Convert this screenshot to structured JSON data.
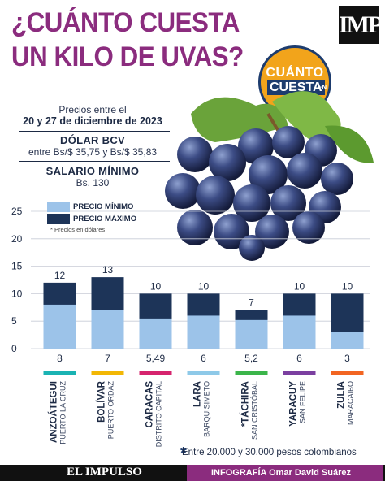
{
  "header": {
    "title_line1": "¿CUÁNTO CUESTA",
    "title_line2": "UN KILO DE UVAS?",
    "logo": "IMP",
    "badge_line1": "CUÁNTO",
    "badge_line2": "CUESTA",
    "badge_line3": "EN",
    "colors": {
      "title": "#8b2c7e",
      "badge": "#f2a41b",
      "navy": "#1d3c6e"
    }
  },
  "info": {
    "prices_label": "Precios entre el",
    "prices_dates": "20 y 27 de diciembre de 2023",
    "dolar_title": "DÓLAR BCV",
    "dolar_value": "entre Bs/$ 35,75 y Bs/$ 35,83",
    "salario_title": "SALARIO MÍNIMO",
    "salario_value": "Bs. 130"
  },
  "legend": {
    "min_label": "PRECIO MÍNIMO",
    "max_label": "PRECIO MÁXIMO",
    "note": "* Precios en dólares"
  },
  "chart_data": {
    "type": "bar",
    "ylim": [
      0,
      25
    ],
    "yticks": [
      "0",
      "5",
      "10",
      "15",
      "20",
      "25"
    ],
    "categories": [
      {
        "state": "ANZOÁTEGUI",
        "city": "PUERTO LA CRUZ",
        "color": "#1ab3b3",
        "star": false
      },
      {
        "state": "BOLÍVAR",
        "city": "PUERTO ORDAZ",
        "color": "#f2b705",
        "star": false
      },
      {
        "state": "CARACAS",
        "city": "DISTRITO CAPITAL",
        "color": "#d6246e",
        "star": false
      },
      {
        "state": "LARA",
        "city": "BARQUISIMETO",
        "color": "#8ec9e8",
        "star": false
      },
      {
        "state": "TÁCHIRA",
        "city": "SAN CRISTÓBAL",
        "color": "#3bb54a",
        "star": true
      },
      {
        "state": "YARACUY",
        "city": "SAN FELIPE",
        "color": "#7b3fa0",
        "star": false
      },
      {
        "state": "ZULIA",
        "city": "MARACAIBO",
        "color": "#f26522",
        "star": false
      }
    ],
    "series": [
      {
        "name": "PRECIO MÍNIMO",
        "color": "#9cc3e9",
        "values": [
          8,
          7,
          5.49,
          6,
          5.2,
          6,
          3
        ]
      },
      {
        "name": "PRECIO MÁXIMO",
        "color": "#1d3458",
        "values": [
          12,
          13,
          10,
          10,
          7,
          10,
          10
        ]
      }
    ],
    "min_labels": [
      "8",
      "7",
      "5,49",
      "6",
      "5,2",
      "6",
      "3"
    ],
    "max_labels": [
      "12",
      "13",
      "10",
      "10",
      "7",
      "10",
      "10"
    ],
    "grid": true,
    "legend_position": "top-left"
  },
  "footnote": {
    "star": "*",
    "text": "Entre 20.000 y 30.000 pesos colombianos"
  },
  "footer": {
    "brand": "EL IMPULSO",
    "credit": "INFOGRAFÍA Omar David Suárez"
  }
}
